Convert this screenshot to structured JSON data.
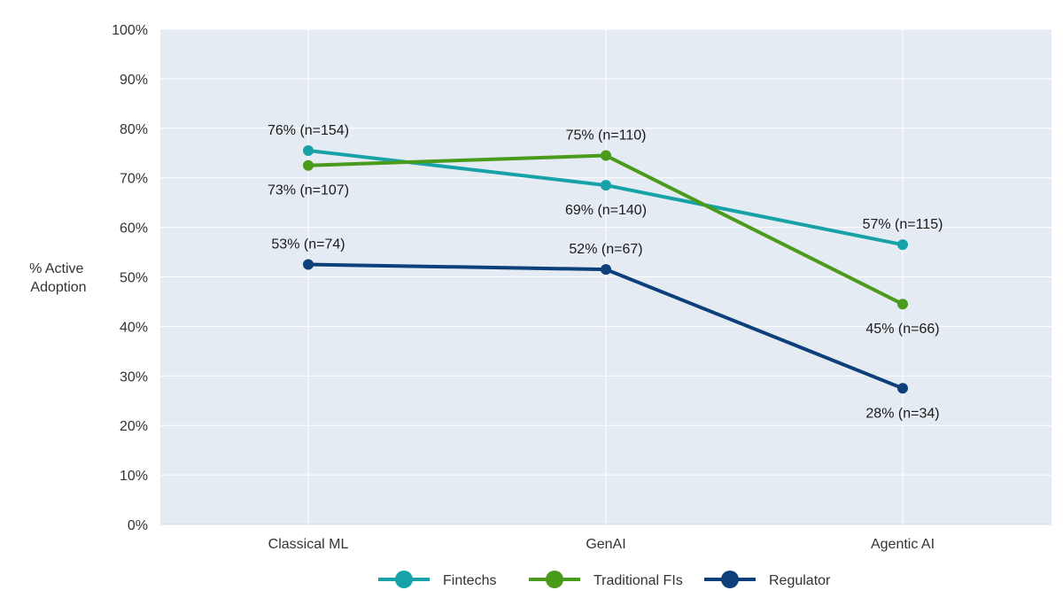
{
  "chart_data": {
    "type": "line",
    "ylabel": "% Active Adoption",
    "ylim": [
      0,
      100
    ],
    "yticks": [
      "0%",
      "10%",
      "20%",
      "30%",
      "40%",
      "50%",
      "60%",
      "70%",
      "80%",
      "90%",
      "100%"
    ],
    "categories": [
      "Classical ML",
      "GenAI",
      "Agentic AI"
    ],
    "grid": true,
    "legend_position": "bottom-center",
    "series": [
      {
        "name": "Fintechs",
        "color": "#17a2a8",
        "values": [
          75.5,
          68.5,
          56.5
        ],
        "labels": [
          "76% (n=154)",
          "69% (n=140)",
          "57% (n=115)"
        ],
        "label_pos": [
          "above",
          "below",
          "above"
        ]
      },
      {
        "name": "Traditional FIs",
        "color": "#4a9a1b",
        "values": [
          72.5,
          74.5,
          44.5
        ],
        "labels": [
          "73% (n=107)",
          "75% (n=110)",
          "45% (n=66)"
        ],
        "label_pos": [
          "below",
          "above",
          "below"
        ]
      },
      {
        "name": "Regulator",
        "color": "#0d3f7a",
        "values": [
          52.5,
          51.5,
          27.5
        ],
        "labels": [
          "53% (n=74)",
          "52% (n=67)",
          "28% (n=34)"
        ],
        "label_pos": [
          "above",
          "above",
          "below"
        ]
      }
    ]
  }
}
